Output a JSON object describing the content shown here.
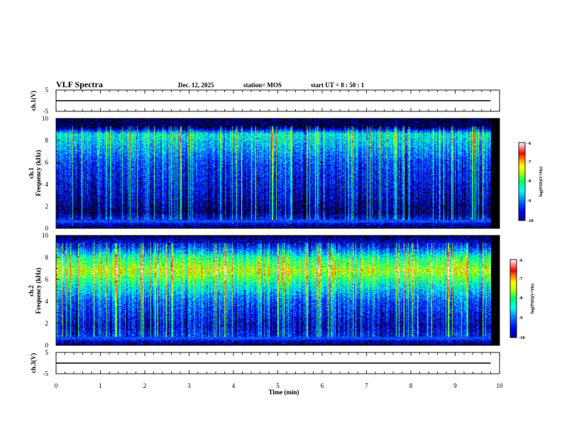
{
  "header": {
    "title": "VLF Spectra",
    "date": "Dec. 12, 2025",
    "station": "station= MOS",
    "start_ut": "start UT =  8 : 50 : 1"
  },
  "colors": {
    "background": "#000000",
    "scale": [
      "#00008c",
      "#0000ff",
      "#0080ff",
      "#00e0ff",
      "#00ff80",
      "#80ff00",
      "#ffff00",
      "#ff8000",
      "#ff0000",
      "#ff9090",
      "#ffffff"
    ]
  },
  "chart_data": [
    {
      "id": "ch1_waveform",
      "type": "line",
      "ylabel": "ch.1(V)",
      "ylim": [
        -5,
        5
      ],
      "yticks": [
        "5",
        "-5"
      ],
      "x": [
        0,
        9.8
      ],
      "values": [
        0,
        0
      ],
      "xlim": [
        0,
        10
      ]
    },
    {
      "id": "ch1_spectrogram",
      "type": "heatmap",
      "ylabel": "ch.1",
      "ylabel2": "Frequency (kHz)",
      "ylim": [
        0,
        10
      ],
      "yticks": [
        "0",
        "2",
        "4",
        "6",
        "8",
        "10"
      ],
      "xlim": [
        0,
        10
      ],
      "data_end_min": 9.8,
      "band_intensity_log": {
        "freq_khz": [
          0,
          0.7,
          1.5,
          3,
          6,
          8.6,
          9.2,
          10
        ],
        "level": [
          -10,
          -9.3,
          -9.9,
          -9.6,
          -9.2,
          -8.3,
          -10,
          -10
        ]
      },
      "colorbar": {
        "ticks": [
          "-6",
          "-7",
          "-8",
          "-9",
          "-10"
        ],
        "label": "log(PSD)(V²/Hz)",
        "range": [
          -10,
          -6
        ]
      }
    },
    {
      "id": "ch2_spectrogram",
      "type": "heatmap",
      "ylabel": "ch.2",
      "ylabel2": "Frequency (kHz)",
      "ylim": [
        0,
        10
      ],
      "yticks": [
        "0",
        "2",
        "4",
        "6",
        "8",
        "10"
      ],
      "xlim": [
        0,
        10
      ],
      "data_end_min": 9.8,
      "band_intensity_log": {
        "freq_khz": [
          0,
          0.7,
          1.8,
          4,
          5.5,
          6.8,
          8,
          9,
          10
        ],
        "level": [
          -10,
          -9.3,
          -9.6,
          -9.1,
          -8.3,
          -7.4,
          -8.1,
          -9.3,
          -10
        ]
      },
      "colorbar": {
        "ticks": [
          "-6",
          "-7",
          "-8",
          "-9",
          "-10"
        ],
        "label": "log(PSD)(V²/Hz)",
        "range": [
          -10,
          -6
        ]
      }
    },
    {
      "id": "ch3_waveform",
      "type": "line",
      "ylabel": "ch.3(V)",
      "ylim": [
        -5,
        5
      ],
      "yticks": [
        "5",
        "-5"
      ],
      "x": [
        0,
        9.8
      ],
      "values": [
        0,
        0
      ],
      "xlim": [
        0,
        10
      ],
      "xlabel": "Time (min)",
      "xticks": [
        "0",
        "1",
        "2",
        "3",
        "4",
        "5",
        "6",
        "7",
        "8",
        "9",
        "10"
      ]
    }
  ]
}
